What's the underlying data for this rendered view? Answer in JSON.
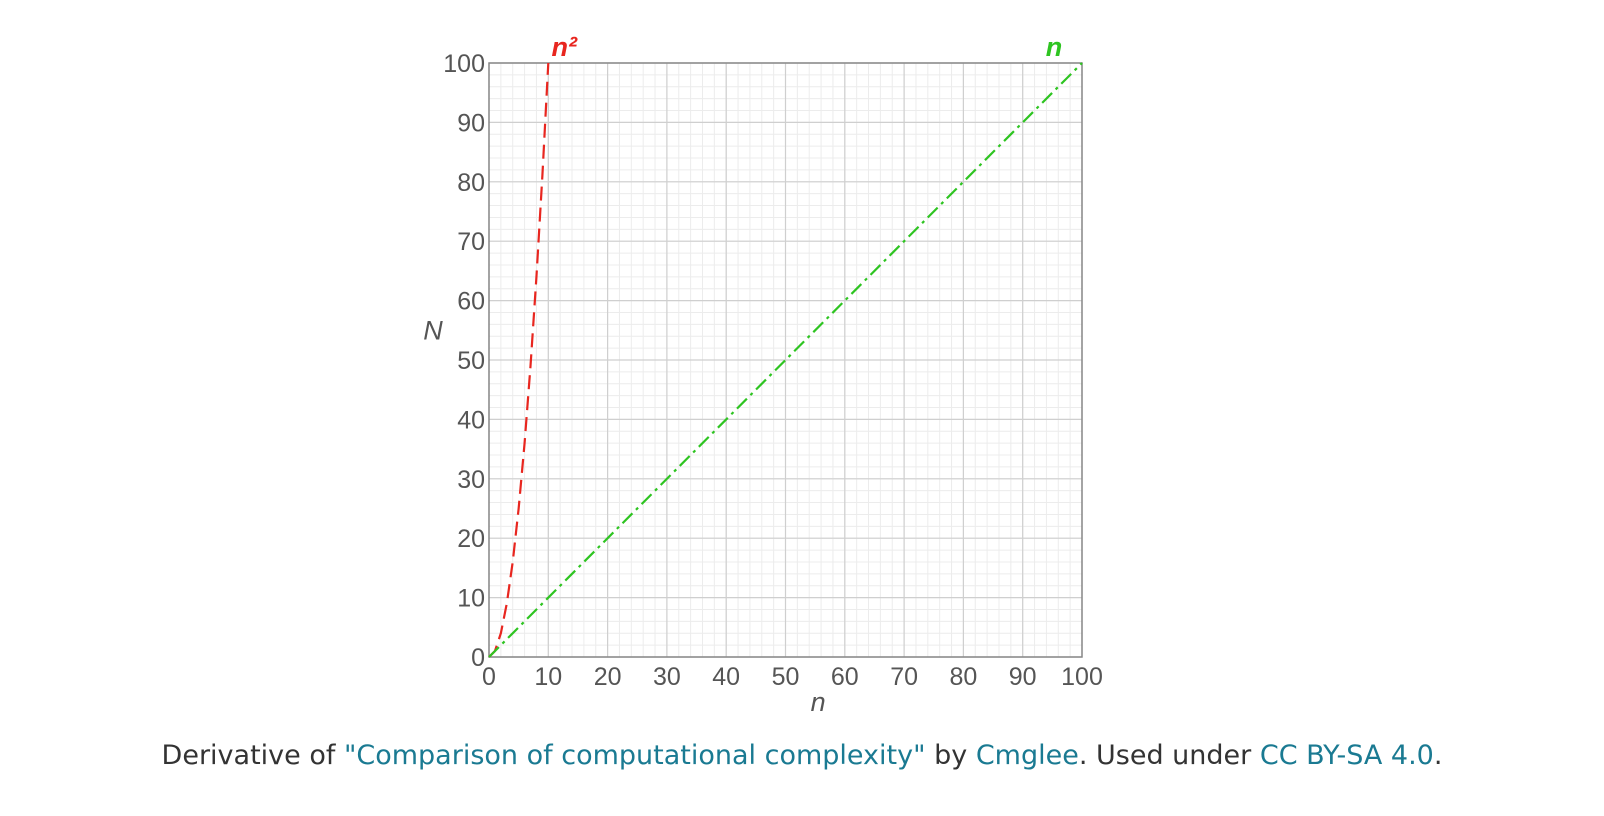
{
  "chart_data": {
    "type": "line",
    "xlabel": "n",
    "ylabel": "N",
    "xlim": [
      0,
      100
    ],
    "ylim": [
      0,
      100
    ],
    "x_ticks": [
      0,
      10,
      20,
      30,
      40,
      50,
      60,
      70,
      80,
      90,
      100
    ],
    "y_ticks": [
      0,
      10,
      20,
      30,
      40,
      50,
      60,
      70,
      80,
      90,
      100
    ],
    "grid": true,
    "minor_grid_step": 2,
    "series": [
      {
        "name": "n²",
        "color": "#e8261f",
        "dash": "dashed",
        "x": [
          0,
          1,
          2,
          3,
          4,
          5,
          6,
          7,
          8,
          9,
          10
        ],
        "values": [
          0,
          1,
          4,
          9,
          16,
          25,
          36,
          49,
          64,
          81,
          100
        ]
      },
      {
        "name": "n",
        "color": "#2ec421",
        "dash": "dash-dot",
        "x": [
          0,
          100
        ],
        "values": [
          0,
          100
        ]
      }
    ]
  },
  "caption": {
    "prefix": "Derivative of ",
    "work_link": "\"Comparison of computational complexity\"",
    "by": " by ",
    "author_link": "Cmglee",
    "used_under": ". Used under ",
    "license_link": "CC BY-SA 4.0",
    "suffix": "."
  }
}
